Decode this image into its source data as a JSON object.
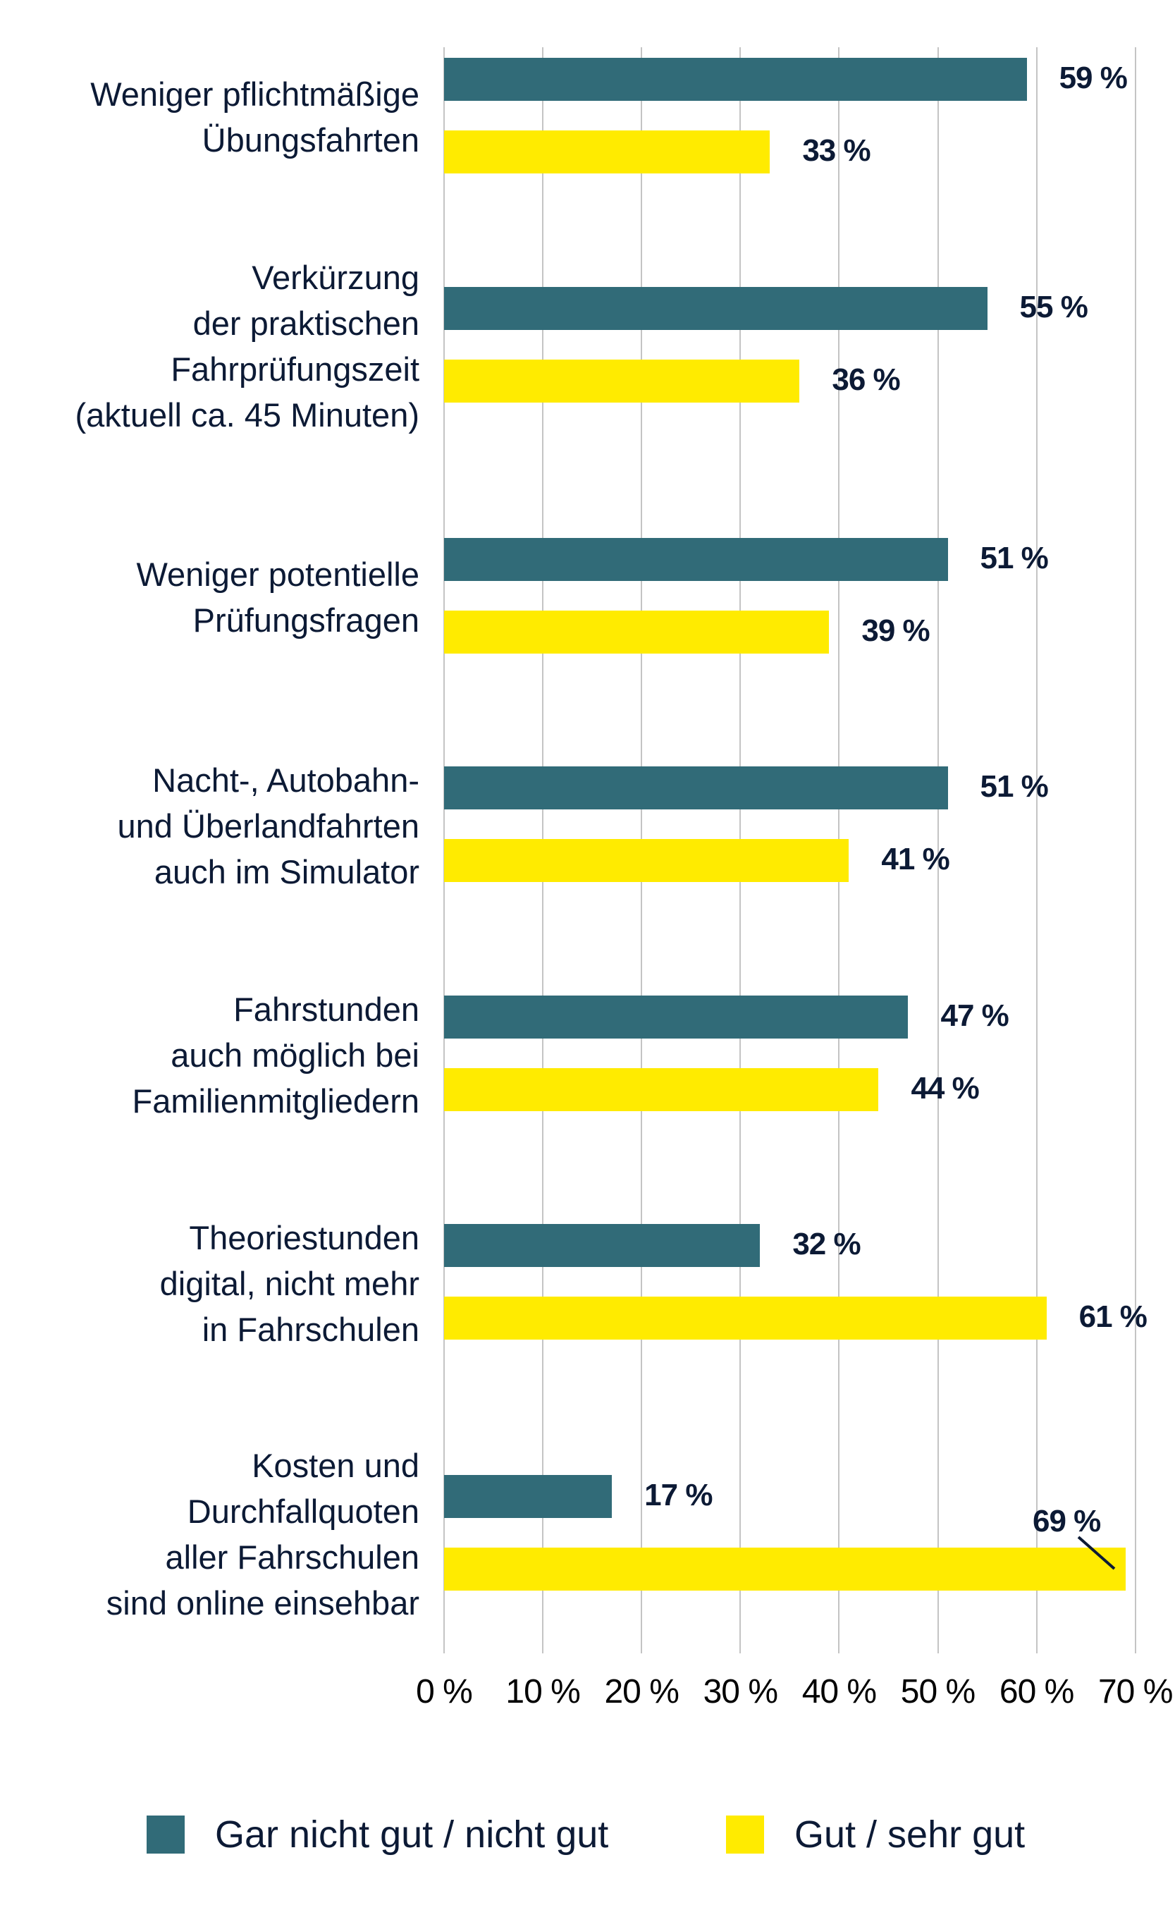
{
  "chart_data": {
    "type": "bar",
    "orientation": "horizontal",
    "title": "",
    "xlabel": "",
    "ylabel": "",
    "xlim": [
      0,
      70
    ],
    "grid": true,
    "legend_position": "bottom",
    "categories": [
      "Weniger pflichtmäßige\nÜbungsfahrten",
      "Verkürzung\nder praktischen\nFahrprüfungszeit\n(aktuell ca. 45 Minuten)",
      "Weniger potentielle\nPrüfungsfragen",
      "Nacht-, Autobahn-\nund Überlandfahrten\nauch im Simulator",
      "Fahrstunden\nauch möglich bei\nFamilienmitgliedern",
      "Theoriestunden\ndigital, nicht mehr\nin Fahrschulen",
      "Kosten und\nDurchfallquoten\naller Fahrschulen\nsind online einsehbar"
    ],
    "series": [
      {
        "name": "Gar nicht gut / nicht gut",
        "color": "#316b78",
        "values": [
          59,
          55,
          51,
          51,
          47,
          32,
          17
        ]
      },
      {
        "name": "Gut / sehr gut",
        "color": "#ffeb00",
        "values": [
          33,
          36,
          39,
          41,
          44,
          61,
          69
        ]
      }
    ],
    "value_labels": {
      "series_0": [
        "59 %",
        "55 %",
        "51 %",
        "51 %",
        "47 %",
        "32 %",
        "17 %"
      ],
      "series_1": [
        "33 %",
        "36 %",
        "39 %",
        "41 %",
        "44 %",
        "61 %",
        "69 %"
      ]
    },
    "x_ticks": [
      "0 %",
      "10 %",
      "20 %",
      "30 %",
      "40 %",
      "50 %",
      "60 %",
      "70 %"
    ],
    "annotations": [
      {
        "text": "69 %",
        "note": "label placed above bar end with leader line"
      }
    ]
  },
  "legend": {
    "items": [
      {
        "label": "Gar nicht gut / nicht gut",
        "color": "#316b78"
      },
      {
        "label": "Gut / sehr gut",
        "color": "#ffeb00"
      }
    ]
  },
  "colors": {
    "teal": "#316b78",
    "yellow": "#ffeb00",
    "text": "#0c1a35",
    "grid": "#c4c4c4"
  }
}
